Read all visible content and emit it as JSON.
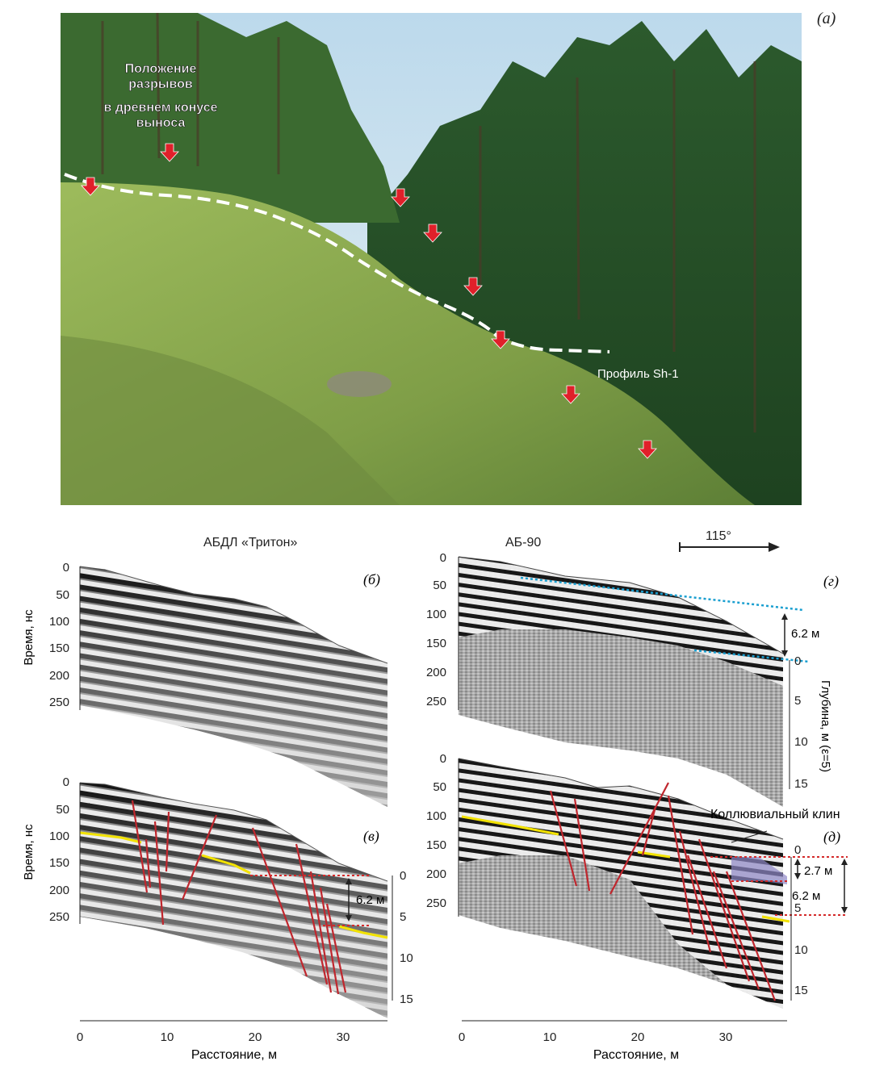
{
  "panel_letters": {
    "a": "(а)",
    "b": "(б)",
    "v": "(в)",
    "g": "(г)",
    "d": "(д)"
  },
  "photo": {
    "annotation": "Положение разрывов в древнем конусе выноса",
    "annotation_lines": [
      "Положение",
      "разрывов",
      "в древнем конусе",
      "выноса"
    ],
    "profile_label": "Профиль Sh-1",
    "colors": {
      "sky": "#cfe3ef",
      "forest": "#2f5a2a",
      "meadow": "#8fae56",
      "arrow": "#e0202a",
      "dash": "#ffffff"
    }
  },
  "headers": {
    "left": "АБДЛ «Тритон»",
    "right": "АБ-90",
    "azimuth": "115°"
  },
  "axes": {
    "time_label": "Время, нс",
    "depth_label": "Глубина, м (ε=5)",
    "distance_label": "Расстояние, м",
    "time_ticks": [
      "0",
      "50",
      "100",
      "150",
      "200",
      "250"
    ],
    "distance_ticks_left": [
      "0",
      "10",
      "20",
      "30"
    ],
    "distance_ticks_right": [
      "0",
      "10",
      "20",
      "30"
    ],
    "depth_ticks_v": [
      "0",
      "5",
      "10",
      "15"
    ],
    "depth_ticks_g": [
      "0",
      "5",
      "10",
      "15"
    ],
    "depth_ticks_d": [
      "0",
      "5",
      "10",
      "15"
    ]
  },
  "annotations": {
    "offset_v": "6.2 м",
    "offset_g": "6.2 м",
    "offset_d1": "2.7 м",
    "offset_d2": "6.2 м",
    "colluvial_wedge": "Коллювиальный клин"
  },
  "colors": {
    "fault": "#c0262d",
    "horizon": "#f2e200",
    "reference": "#1a9fd0",
    "offset": "#d42a2a",
    "wedge": "#8e87c6"
  }
}
